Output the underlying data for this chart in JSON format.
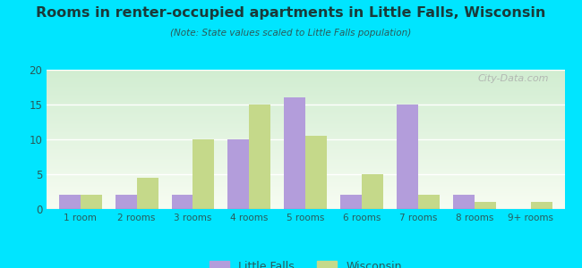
{
  "title": "Rooms in renter-occupied apartments in Little Falls, Wisconsin",
  "subtitle": "(Note: State values scaled to Little Falls population)",
  "categories": [
    "1 room",
    "2 rooms",
    "3 rooms",
    "4 rooms",
    "5 rooms",
    "6 rooms",
    "7 rooms",
    "8 rooms",
    "9+ rooms"
  ],
  "little_falls": [
    2,
    2,
    2,
    10,
    16,
    2,
    15,
    2,
    0
  ],
  "wisconsin": [
    2,
    4.5,
    10,
    15,
    10.5,
    5,
    2,
    1,
    1
  ],
  "little_falls_color": "#b39ddb",
  "wisconsin_color": "#c5d98a",
  "background_outer": "#00e5ff",
  "ylim": [
    0,
    20
  ],
  "yticks": [
    0,
    5,
    10,
    15,
    20
  ],
  "bar_width": 0.38,
  "watermark": "City-Data.com",
  "legend_little_falls": "Little Falls",
  "legend_wisconsin": "Wisconsin",
  "title_color": "#1a3a3a",
  "subtitle_color": "#2a5a5a",
  "tick_color": "#2a5a5a"
}
